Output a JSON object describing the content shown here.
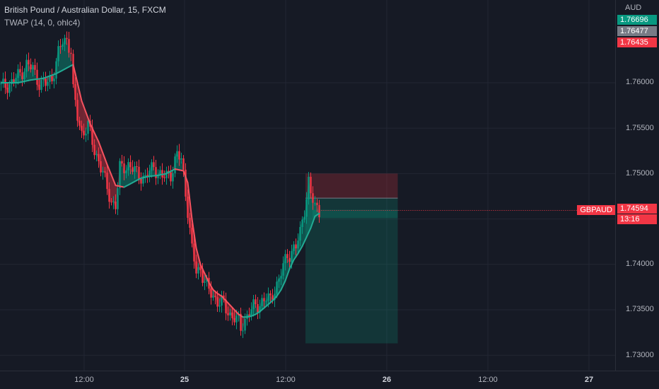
{
  "legend": {
    "title": "British Pound / Australian Dollar, 15, FXCM",
    "indicator": "TWAP (14, 0, ohlc4)"
  },
  "price_axis": {
    "unit": "AUD",
    "labels": [
      {
        "text": "1.76000",
        "value": 1.76
      },
      {
        "text": "1.75500",
        "value": 1.755
      },
      {
        "text": "1.75000",
        "value": 1.75
      },
      {
        "text": "1.74000",
        "value": 1.74
      },
      {
        "text": "1.73500",
        "value": 1.735
      },
      {
        "text": "1.73000",
        "value": 1.73
      }
    ],
    "badges": [
      {
        "text": "1.76696",
        "value": 1.76696,
        "color": "#089981"
      },
      {
        "text": "1.76477",
        "value": 1.76477,
        "color": "#787b86"
      },
      {
        "text": "1.76435",
        "value": 1.76435,
        "color": "#f23645"
      },
      {
        "text": "1.74594",
        "value": 1.74594,
        "color": "#f23645"
      }
    ],
    "countdown": "13:16",
    "symbol": "GBPAUD"
  },
  "time_axis": {
    "labels": [
      {
        "text": "12:00",
        "bold": false
      },
      {
        "text": "25",
        "bold": true
      },
      {
        "text": "12:00",
        "bold": false
      },
      {
        "text": "26",
        "bold": true
      },
      {
        "text": "12:00",
        "bold": false
      },
      {
        "text": "27",
        "bold": true
      }
    ]
  },
  "colors": {
    "background": "#161a25",
    "grid": "#222633",
    "up": "#089981",
    "down": "#f23645",
    "twap_up": "#22ab94",
    "twap_down": "#f7525f"
  },
  "chart_data": {
    "type": "candlestick",
    "symbol": "GBPAUD",
    "interval": "15",
    "ylim": [
      1.7283,
      1.7682
    ],
    "price_path": [
      [
        0,
        1.7595
      ],
      [
        5,
        1.76
      ],
      [
        9,
        1.761
      ],
      [
        12,
        1.762
      ],
      [
        15,
        1.7615
      ],
      [
        18,
        1.76
      ],
      [
        21,
        1.7598
      ],
      [
        24,
        1.7605
      ],
      [
        27,
        1.7632
      ],
      [
        29,
        1.7645
      ],
      [
        31,
        1.7648
      ],
      [
        33,
        1.7635
      ],
      [
        34,
        1.759
      ],
      [
        36,
        1.7562
      ],
      [
        38,
        1.7545
      ],
      [
        41,
        1.7552
      ],
      [
        44,
        1.7525
      ],
      [
        46,
        1.7515
      ],
      [
        48,
        1.75
      ],
      [
        50,
        1.7482
      ],
      [
        52,
        1.747
      ],
      [
        54,
        1.7465
      ],
      [
        56,
        1.7505
      ],
      [
        60,
        1.751
      ],
      [
        64,
        1.75
      ],
      [
        68,
        1.7495
      ],
      [
        72,
        1.7508
      ],
      [
        76,
        1.7495
      ],
      [
        80,
        1.75
      ],
      [
        83,
        1.752
      ],
      [
        85,
        1.7515
      ],
      [
        86,
        1.75
      ],
      [
        88,
        1.746
      ],
      [
        90,
        1.7415
      ],
      [
        92,
        1.7392
      ],
      [
        94,
        1.7395
      ],
      [
        96,
        1.7382
      ],
      [
        98,
        1.737
      ],
      [
        100,
        1.7365
      ],
      [
        102,
        1.736
      ],
      [
        104,
        1.7358
      ],
      [
        106,
        1.735
      ],
      [
        108,
        1.7345
      ],
      [
        110,
        1.7342
      ],
      [
        112,
        1.7336
      ],
      [
        113,
        1.7328
      ],
      [
        115,
        1.734
      ],
      [
        117,
        1.7348
      ],
      [
        119,
        1.7352
      ],
      [
        121,
        1.7355
      ],
      [
        123,
        1.736
      ],
      [
        125,
        1.7362
      ],
      [
        127,
        1.736
      ],
      [
        129,
        1.7375
      ],
      [
        131,
        1.7382
      ],
      [
        133,
        1.7398
      ],
      [
        135,
        1.741
      ],
      [
        137,
        1.7415
      ],
      [
        139,
        1.7418
      ],
      [
        141,
        1.7435
      ],
      [
        143,
        1.7462
      ],
      [
        145,
        1.749
      ],
      [
        146,
        1.7475
      ],
      [
        148,
        1.7465
      ],
      [
        150,
        1.7459
      ]
    ],
    "twap_path": [
      [
        0,
        1.76
      ],
      [
        8,
        1.76
      ],
      [
        14,
        1.7603
      ],
      [
        20,
        1.7605
      ],
      [
        26,
        1.761
      ],
      [
        30,
        1.7615
      ],
      [
        34,
        1.762
      ],
      [
        38,
        1.758
      ],
      [
        42,
        1.7555
      ],
      [
        46,
        1.7535
      ],
      [
        50,
        1.751
      ],
      [
        54,
        1.7487
      ],
      [
        58,
        1.7485
      ],
      [
        62,
        1.749
      ],
      [
        66,
        1.7495
      ],
      [
        70,
        1.7497
      ],
      [
        74,
        1.7498
      ],
      [
        78,
        1.75
      ],
      [
        82,
        1.7505
      ],
      [
        86,
        1.7503
      ],
      [
        88,
        1.749
      ],
      [
        90,
        1.745
      ],
      [
        92,
        1.7418
      ],
      [
        94,
        1.74
      ],
      [
        96,
        1.739
      ],
      [
        98,
        1.738
      ],
      [
        100,
        1.7372
      ],
      [
        102,
        1.7368
      ],
      [
        104,
        1.7365
      ],
      [
        106,
        1.736
      ],
      [
        108,
        1.7355
      ],
      [
        110,
        1.735
      ],
      [
        112,
        1.7345
      ],
      [
        114,
        1.7342
      ],
      [
        116,
        1.7342
      ],
      [
        118,
        1.7343
      ],
      [
        120,
        1.7345
      ],
      [
        122,
        1.7348
      ],
      [
        124,
        1.7352
      ],
      [
        126,
        1.7356
      ],
      [
        128,
        1.736
      ],
      [
        130,
        1.7365
      ],
      [
        132,
        1.7372
      ],
      [
        134,
        1.7382
      ],
      [
        136,
        1.7395
      ],
      [
        138,
        1.7405
      ],
      [
        140,
        1.7412
      ],
      [
        142,
        1.742
      ],
      [
        144,
        1.743
      ],
      [
        146,
        1.744
      ],
      [
        148,
        1.7453
      ],
      [
        150,
        1.7456
      ]
    ],
    "position": {
      "direction": "short",
      "entry": 1.7473,
      "stop": 1.75,
      "target": 1.7313,
      "start_bar": 144,
      "end_bar": 187
    },
    "last_price": 1.74594,
    "day_markers": [
      "25",
      "26",
      "27"
    ]
  }
}
